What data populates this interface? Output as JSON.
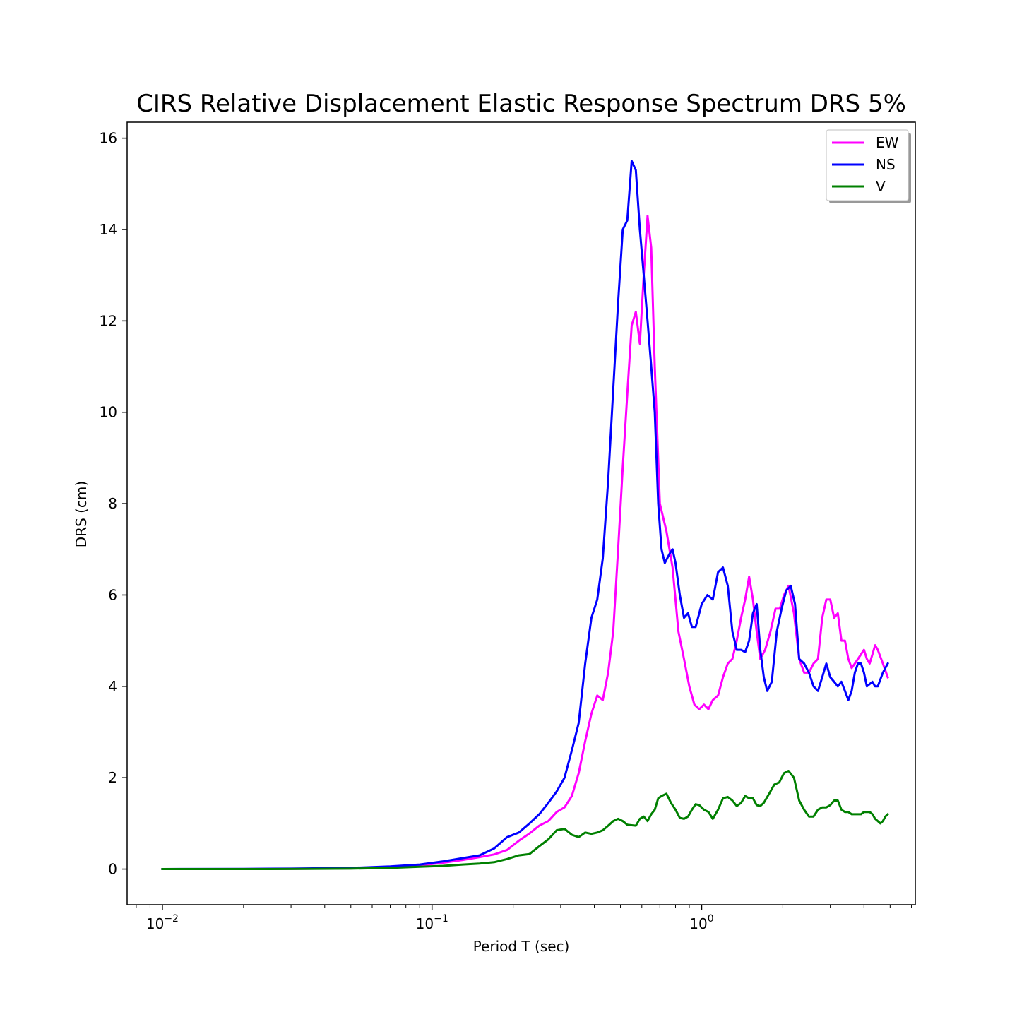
{
  "chart_data": {
    "type": "line",
    "title": "CIRS Relative Displacement Elastic Response Spectrum DRS 5%",
    "xlabel": "Period T (sec)",
    "ylabel": "DRS (cm)",
    "xscale": "log",
    "xlim": [
      0.0074,
      6.2
    ],
    "ylim": [
      -0.78,
      16.35
    ],
    "yticks": [
      0,
      2,
      4,
      6,
      8,
      10,
      12,
      14,
      16
    ],
    "xticks": [
      {
        "value": 0.01,
        "base": "10",
        "exp": "−2"
      },
      {
        "value": 0.1,
        "base": "10",
        "exp": "−1"
      },
      {
        "value": 1,
        "base": "10",
        "exp": "0"
      }
    ],
    "grid": false,
    "legend": "top-right",
    "series": [
      {
        "name": "EW",
        "color": "#ff00ff",
        "points": [
          [
            0.01,
            0.0
          ],
          [
            0.02,
            0.0
          ],
          [
            0.03,
            0.005
          ],
          [
            0.05,
            0.015
          ],
          [
            0.07,
            0.04
          ],
          [
            0.09,
            0.08
          ],
          [
            0.11,
            0.14
          ],
          [
            0.13,
            0.2
          ],
          [
            0.15,
            0.26
          ],
          [
            0.17,
            0.32
          ],
          [
            0.19,
            0.42
          ],
          [
            0.21,
            0.62
          ],
          [
            0.23,
            0.78
          ],
          [
            0.25,
            0.95
          ],
          [
            0.27,
            1.05
          ],
          [
            0.29,
            1.25
          ],
          [
            0.31,
            1.35
          ],
          [
            0.33,
            1.6
          ],
          [
            0.35,
            2.1
          ],
          [
            0.37,
            2.8
          ],
          [
            0.39,
            3.4
          ],
          [
            0.41,
            3.8
          ],
          [
            0.43,
            3.7
          ],
          [
            0.45,
            4.3
          ],
          [
            0.47,
            5.2
          ],
          [
            0.49,
            7.0
          ],
          [
            0.51,
            8.8
          ],
          [
            0.53,
            10.4
          ],
          [
            0.55,
            11.9
          ],
          [
            0.57,
            12.2
          ],
          [
            0.59,
            11.5
          ],
          [
            0.61,
            13.0
          ],
          [
            0.63,
            14.3
          ],
          [
            0.65,
            13.6
          ],
          [
            0.67,
            11.0
          ],
          [
            0.7,
            8.0
          ],
          [
            0.74,
            7.4
          ],
          [
            0.78,
            6.6
          ],
          [
            0.82,
            5.2
          ],
          [
            0.86,
            4.6
          ],
          [
            0.9,
            4.0
          ],
          [
            0.94,
            3.6
          ],
          [
            0.98,
            3.5
          ],
          [
            1.02,
            3.6
          ],
          [
            1.06,
            3.5
          ],
          [
            1.1,
            3.7
          ],
          [
            1.15,
            3.8
          ],
          [
            1.2,
            4.2
          ],
          [
            1.25,
            4.5
          ],
          [
            1.3,
            4.6
          ],
          [
            1.35,
            5.0
          ],
          [
            1.4,
            5.5
          ],
          [
            1.45,
            5.9
          ],
          [
            1.5,
            6.4
          ],
          [
            1.55,
            5.9
          ],
          [
            1.6,
            5.2
          ],
          [
            1.65,
            4.6
          ],
          [
            1.72,
            4.8
          ],
          [
            1.8,
            5.2
          ],
          [
            1.88,
            5.7
          ],
          [
            1.95,
            5.7
          ],
          [
            2.02,
            6.0
          ],
          [
            2.1,
            6.2
          ],
          [
            2.2,
            5.6
          ],
          [
            2.3,
            4.6
          ],
          [
            2.4,
            4.3
          ],
          [
            2.5,
            4.3
          ],
          [
            2.6,
            4.5
          ],
          [
            2.7,
            4.6
          ],
          [
            2.8,
            5.5
          ],
          [
            2.9,
            5.9
          ],
          [
            3.0,
            5.9
          ],
          [
            3.1,
            5.5
          ],
          [
            3.2,
            5.6
          ],
          [
            3.3,
            5.0
          ],
          [
            3.4,
            5.0
          ],
          [
            3.5,
            4.6
          ],
          [
            3.6,
            4.4
          ],
          [
            3.7,
            4.5
          ],
          [
            3.8,
            4.6
          ],
          [
            3.9,
            4.7
          ],
          [
            4.0,
            4.8
          ],
          [
            4.1,
            4.6
          ],
          [
            4.2,
            4.5
          ],
          [
            4.3,
            4.7
          ],
          [
            4.4,
            4.9
          ],
          [
            4.5,
            4.8
          ],
          [
            4.7,
            4.5
          ],
          [
            4.9,
            4.2
          ]
        ]
      },
      {
        "name": "NS",
        "color": "#0000ff",
        "points": [
          [
            0.01,
            0.0
          ],
          [
            0.02,
            0.005
          ],
          [
            0.03,
            0.01
          ],
          [
            0.05,
            0.025
          ],
          [
            0.07,
            0.06
          ],
          [
            0.09,
            0.1
          ],
          [
            0.11,
            0.17
          ],
          [
            0.13,
            0.24
          ],
          [
            0.15,
            0.3
          ],
          [
            0.17,
            0.45
          ],
          [
            0.19,
            0.7
          ],
          [
            0.21,
            0.8
          ],
          [
            0.23,
            1.0
          ],
          [
            0.25,
            1.2
          ],
          [
            0.27,
            1.45
          ],
          [
            0.29,
            1.7
          ],
          [
            0.31,
            2.0
          ],
          [
            0.33,
            2.6
          ],
          [
            0.35,
            3.2
          ],
          [
            0.37,
            4.5
          ],
          [
            0.39,
            5.5
          ],
          [
            0.41,
            5.9
          ],
          [
            0.43,
            6.8
          ],
          [
            0.45,
            8.5
          ],
          [
            0.47,
            10.5
          ],
          [
            0.49,
            12.4
          ],
          [
            0.51,
            14.0
          ],
          [
            0.53,
            14.2
          ],
          [
            0.55,
            15.5
          ],
          [
            0.57,
            15.3
          ],
          [
            0.59,
            14.0
          ],
          [
            0.61,
            13.0
          ],
          [
            0.63,
            12.0
          ],
          [
            0.65,
            11.0
          ],
          [
            0.67,
            10.0
          ],
          [
            0.69,
            8.0
          ],
          [
            0.71,
            7.0
          ],
          [
            0.73,
            6.7
          ],
          [
            0.76,
            6.9
          ],
          [
            0.78,
            7.0
          ],
          [
            0.8,
            6.7
          ],
          [
            0.83,
            6.0
          ],
          [
            0.86,
            5.5
          ],
          [
            0.89,
            5.6
          ],
          [
            0.92,
            5.3
          ],
          [
            0.95,
            5.3
          ],
          [
            1.0,
            5.8
          ],
          [
            1.05,
            6.0
          ],
          [
            1.1,
            5.9
          ],
          [
            1.15,
            6.5
          ],
          [
            1.2,
            6.6
          ],
          [
            1.25,
            6.2
          ],
          [
            1.3,
            5.2
          ],
          [
            1.35,
            4.8
          ],
          [
            1.4,
            4.8
          ],
          [
            1.45,
            4.75
          ],
          [
            1.5,
            5.0
          ],
          [
            1.55,
            5.6
          ],
          [
            1.6,
            5.8
          ],
          [
            1.65,
            4.8
          ],
          [
            1.7,
            4.2
          ],
          [
            1.75,
            3.9
          ],
          [
            1.82,
            4.1
          ],
          [
            1.9,
            5.2
          ],
          [
            1.98,
            5.7
          ],
          [
            2.06,
            6.1
          ],
          [
            2.14,
            6.2
          ],
          [
            2.22,
            5.8
          ],
          [
            2.3,
            4.6
          ],
          [
            2.4,
            4.5
          ],
          [
            2.5,
            4.3
          ],
          [
            2.6,
            4.0
          ],
          [
            2.7,
            3.9
          ],
          [
            2.8,
            4.2
          ],
          [
            2.9,
            4.5
          ],
          [
            3.0,
            4.2
          ],
          [
            3.1,
            4.1
          ],
          [
            3.2,
            4.0
          ],
          [
            3.3,
            4.1
          ],
          [
            3.4,
            3.9
          ],
          [
            3.5,
            3.7
          ],
          [
            3.6,
            3.9
          ],
          [
            3.7,
            4.3
          ],
          [
            3.8,
            4.5
          ],
          [
            3.9,
            4.5
          ],
          [
            4.0,
            4.3
          ],
          [
            4.1,
            4.0
          ],
          [
            4.2,
            4.05
          ],
          [
            4.3,
            4.1
          ],
          [
            4.4,
            4.0
          ],
          [
            4.5,
            4.0
          ],
          [
            4.7,
            4.3
          ],
          [
            4.9,
            4.5
          ]
        ]
      },
      {
        "name": "V",
        "color": "#008000",
        "points": [
          [
            0.01,
            0.0
          ],
          [
            0.02,
            0.0
          ],
          [
            0.03,
            0.002
          ],
          [
            0.05,
            0.01
          ],
          [
            0.07,
            0.025
          ],
          [
            0.09,
            0.05
          ],
          [
            0.11,
            0.07
          ],
          [
            0.13,
            0.1
          ],
          [
            0.15,
            0.12
          ],
          [
            0.17,
            0.15
          ],
          [
            0.19,
            0.22
          ],
          [
            0.21,
            0.3
          ],
          [
            0.23,
            0.33
          ],
          [
            0.25,
            0.5
          ],
          [
            0.27,
            0.65
          ],
          [
            0.29,
            0.85
          ],
          [
            0.31,
            0.88
          ],
          [
            0.33,
            0.75
          ],
          [
            0.35,
            0.7
          ],
          [
            0.37,
            0.8
          ],
          [
            0.39,
            0.77
          ],
          [
            0.41,
            0.8
          ],
          [
            0.43,
            0.85
          ],
          [
            0.45,
            0.95
          ],
          [
            0.47,
            1.05
          ],
          [
            0.49,
            1.1
          ],
          [
            0.51,
            1.05
          ],
          [
            0.53,
            0.97
          ],
          [
            0.55,
            0.96
          ],
          [
            0.57,
            0.95
          ],
          [
            0.59,
            1.1
          ],
          [
            0.61,
            1.15
          ],
          [
            0.63,
            1.05
          ],
          [
            0.65,
            1.2
          ],
          [
            0.67,
            1.3
          ],
          [
            0.69,
            1.55
          ],
          [
            0.71,
            1.6
          ],
          [
            0.74,
            1.65
          ],
          [
            0.77,
            1.45
          ],
          [
            0.8,
            1.3
          ],
          [
            0.83,
            1.12
          ],
          [
            0.86,
            1.1
          ],
          [
            0.89,
            1.15
          ],
          [
            0.92,
            1.3
          ],
          [
            0.95,
            1.42
          ],
          [
            0.98,
            1.4
          ],
          [
            1.02,
            1.3
          ],
          [
            1.06,
            1.25
          ],
          [
            1.1,
            1.1
          ],
          [
            1.15,
            1.3
          ],
          [
            1.2,
            1.55
          ],
          [
            1.25,
            1.58
          ],
          [
            1.3,
            1.5
          ],
          [
            1.35,
            1.38
          ],
          [
            1.4,
            1.45
          ],
          [
            1.45,
            1.6
          ],
          [
            1.5,
            1.55
          ],
          [
            1.55,
            1.55
          ],
          [
            1.6,
            1.4
          ],
          [
            1.65,
            1.38
          ],
          [
            1.7,
            1.45
          ],
          [
            1.78,
            1.65
          ],
          [
            1.86,
            1.85
          ],
          [
            1.94,
            1.9
          ],
          [
            2.02,
            2.1
          ],
          [
            2.1,
            2.15
          ],
          [
            2.2,
            2.0
          ],
          [
            2.3,
            1.5
          ],
          [
            2.4,
            1.3
          ],
          [
            2.5,
            1.15
          ],
          [
            2.6,
            1.15
          ],
          [
            2.7,
            1.3
          ],
          [
            2.8,
            1.35
          ],
          [
            2.9,
            1.35
          ],
          [
            3.0,
            1.4
          ],
          [
            3.1,
            1.5
          ],
          [
            3.2,
            1.5
          ],
          [
            3.3,
            1.3
          ],
          [
            3.4,
            1.25
          ],
          [
            3.5,
            1.25
          ],
          [
            3.6,
            1.2
          ],
          [
            3.7,
            1.2
          ],
          [
            3.8,
            1.2
          ],
          [
            3.9,
            1.2
          ],
          [
            4.0,
            1.25
          ],
          [
            4.1,
            1.25
          ],
          [
            4.2,
            1.25
          ],
          [
            4.3,
            1.2
          ],
          [
            4.4,
            1.1
          ],
          [
            4.5,
            1.05
          ],
          [
            4.6,
            1.0
          ],
          [
            4.7,
            1.05
          ],
          [
            4.8,
            1.15
          ],
          [
            4.9,
            1.2
          ]
        ]
      }
    ]
  }
}
